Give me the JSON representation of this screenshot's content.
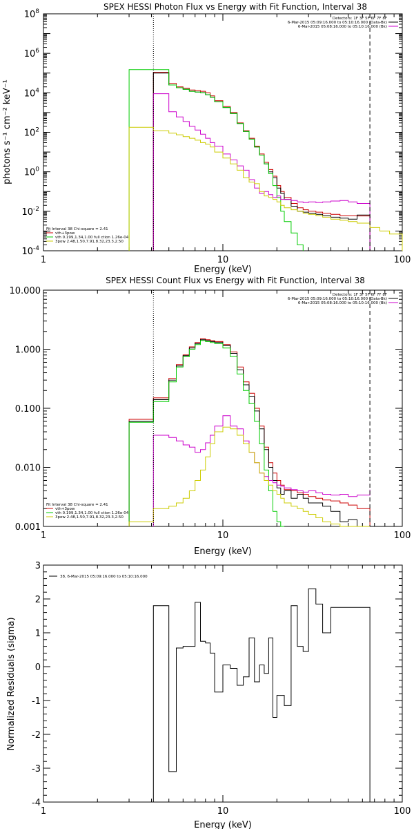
{
  "chart_data": [
    {
      "type": "line",
      "title": "SPEX HESSI Photon Flux vs Energy with Fit Function, Interval 38",
      "xlabel": "Energy (keV)",
      "ylabel": "photons s⁻¹ cm⁻² keV⁻¹",
      "x_scale": "log",
      "y_scale": "log",
      "xlim": [
        1,
        100
      ],
      "ylim": [
        0.0001,
        100000000
      ],
      "x_ticks": [
        {
          "v": 1,
          "label": "1"
        },
        {
          "v": 10,
          "label": "10"
        },
        {
          "v": 100,
          "label": "100"
        }
      ],
      "y_ticks": [
        {
          "v": 0.0001,
          "base": "10",
          "exp": "-4"
        },
        {
          "v": 0.01,
          "base": "10",
          "exp": "-2"
        },
        {
          "v": 1,
          "base": "10",
          "exp": "0"
        },
        {
          "v": 100,
          "base": "10",
          "exp": "2"
        },
        {
          "v": 10000,
          "base": "10",
          "exp": "4"
        },
        {
          "v": 1000000,
          "base": "10",
          "exp": "6"
        },
        {
          "v": 100000000,
          "base": "10",
          "exp": "8"
        }
      ],
      "vlines": [
        {
          "x": 4.1,
          "style": "dotted"
        },
        {
          "x": 66,
          "style": "dashed"
        }
      ],
      "legend_top_right": [
        {
          "text": "Detectors: 1F 3F 5F 6F 7F 8F",
          "color": "#000000"
        },
        {
          "text": "6-Mar-2015 05:09:16.000 to 05:10:16.000 (Data-Bk)",
          "color": "#000000"
        },
        {
          "text": "6-Mar-2015 05:08:16.000 to 05:10:16.000 (Bk)",
          "color": "#cc00cc"
        }
      ],
      "legend_bottom_left": [
        {
          "text": "Fit Interval 38   Chi-square = 2.41",
          "color": "#000000"
        },
        {
          "text": "vth+3pow",
          "color": "#cc0000"
        },
        {
          "text": "vth 0.199,1.34,1.00  full ction 1.26e-04",
          "color": "#00cc00"
        },
        {
          "text": "3pow 2.48,1.50,7.91,8.32,23.3,2.50",
          "color": "#cccc00"
        }
      ],
      "series": [
        {
          "color": "#cc0000",
          "edges": [
            4.1,
            5.0,
            5.5,
            6.0,
            6.5,
            7.0,
            7.5,
            8.0,
            8.5,
            9.0,
            10.0,
            11.0,
            12.0,
            13.0,
            14.0,
            15.0,
            16.0,
            17.0,
            18.0,
            19.0,
            20.0,
            21.0,
            22.0,
            24.0,
            26.0,
            28.0,
            30.0,
            33.0,
            36.0,
            40.0,
            45.0,
            50.0,
            56.0,
            66.0
          ],
          "values": [
            110000,
            30000,
            20000,
            17000,
            14000,
            13000,
            12000,
            10000,
            7000,
            4000,
            2000,
            1000,
            300,
            120,
            50,
            20,
            8,
            3,
            1.3,
            0.6,
            0.2,
            0.1,
            0.05,
            0.025,
            0.015,
            0.012,
            0.01,
            0.009,
            0.008,
            0.007,
            0.006,
            0.006,
            0.0058
          ]
        },
        {
          "color": "#000000",
          "edges": [
            4.1,
            5.0,
            5.5,
            6.0,
            6.5,
            7.0,
            7.5,
            8.0,
            8.5,
            9.0,
            10.0,
            11.0,
            12.0,
            13.0,
            14.0,
            15.0,
            16.0,
            17.0,
            18.0,
            19.0,
            20.0,
            21.0,
            22.0,
            24.0,
            26.0,
            28.0,
            30.0,
            33.0,
            36.0,
            40.0,
            45.0,
            50.0,
            56.0,
            66.0
          ],
          "values": [
            100000,
            25000,
            18000,
            15000,
            12000,
            11000,
            10000,
            8000,
            6000,
            3500,
            1800,
            900,
            280,
            110,
            45,
            18,
            7,
            2.5,
            1.0,
            0.5,
            0.15,
            0.08,
            0.04,
            0.018,
            0.01,
            0.009,
            0.008,
            0.007,
            0.006,
            0.005,
            0.0045,
            0.004,
            0.0065
          ]
        },
        {
          "color": "#00cc00",
          "edges": [
            3.0,
            4.1,
            5.0,
            5.5,
            6.0,
            6.5,
            7.0,
            7.5,
            8.0,
            8.5,
            9.0,
            10.0,
            11.0,
            12.0,
            13.0,
            14.0,
            15.0,
            16.0,
            17.0,
            18.0,
            19.0,
            20.0,
            21.0,
            22.0,
            24.0,
            26.0,
            28.0
          ],
          "values": [
            150000,
            150000,
            25000,
            18000,
            15000,
            12000,
            11000,
            10000,
            8000,
            6000,
            3500,
            1800,
            900,
            280,
            110,
            45,
            18,
            7,
            2.5,
            0.8,
            0.2,
            0.05,
            0.01,
            0.003,
            0.0008,
            0.0002
          ]
        },
        {
          "color": "#cc00cc",
          "edges": [
            4.1,
            5.0,
            5.5,
            6.0,
            6.5,
            7.0,
            7.5,
            8.0,
            8.5,
            9.0,
            10.0,
            11.0,
            12.0,
            13.0,
            14.0,
            15.0,
            16.0,
            17.0,
            18.0,
            19.0,
            20.0,
            21.0,
            22.0,
            24.0,
            26.0,
            28.0,
            30.0,
            33.0,
            36.0,
            40.0,
            45.0,
            50.0,
            56.0,
            66.0
          ],
          "values": [
            9000,
            1100,
            600,
            350,
            200,
            130,
            80,
            50,
            30,
            20,
            8,
            4,
            2,
            1.2,
            0.4,
            0.15,
            0.08,
            0.1,
            0.07,
            0.05,
            0.06,
            0.04,
            0.04,
            0.035,
            0.03,
            0.028,
            0.03,
            0.028,
            0.03,
            0.033,
            0.035,
            0.03,
            0.025
          ]
        },
        {
          "color": "#cccc00",
          "edges": [
            3.0,
            4.1,
            5.0,
            5.5,
            6.0,
            6.5,
            7.0,
            7.5,
            8.0,
            8.5,
            9.0,
            10.0,
            11.0,
            12.0,
            13.0,
            14.0,
            15.0,
            16.0,
            17.0,
            18.0,
            19.0,
            20.0,
            21.0,
            22.0,
            24.0,
            26.0,
            28.0,
            30.0,
            33.0,
            36.0,
            40.0,
            45.0,
            50.0,
            56.0,
            66.0,
            75.0,
            85.0,
            100.0
          ],
          "values": [
            180,
            120,
            90,
            75,
            60,
            50,
            40,
            30,
            25,
            18,
            10,
            5,
            2.5,
            1.2,
            0.5,
            0.3,
            0.25,
            0.1,
            0.06,
            0.05,
            0.04,
            0.03,
            0.02,
            0.015,
            0.012,
            0.01,
            0.008,
            0.007,
            0.006,
            0.005,
            0.004,
            0.0035,
            0.003,
            0.0025,
            0.0015,
            0.001,
            0.0007
          ]
        }
      ]
    },
    {
      "type": "line",
      "title": "SPEX HESSI Count Flux vs Energy with Fit Function, Interval 38",
      "xlabel": "Energy (keV)",
      "ylabel": "",
      "x_scale": "log",
      "y_scale": "log",
      "xlim": [
        1,
        100
      ],
      "ylim": [
        0.001,
        10
      ],
      "x_ticks": [
        {
          "v": 1,
          "label": "1"
        },
        {
          "v": 10,
          "label": "10"
        },
        {
          "v": 100,
          "label": "100"
        }
      ],
      "y_ticks": [
        {
          "v": 0.001,
          "label": "0.001"
        },
        {
          "v": 0.01,
          "label": "0.010"
        },
        {
          "v": 0.1,
          "label": "0.100"
        },
        {
          "v": 1,
          "label": "1.000"
        },
        {
          "v": 10,
          "label": "10.000"
        }
      ],
      "vlines": [
        {
          "x": 4.1,
          "style": "dotted"
        },
        {
          "x": 66,
          "style": "dashed"
        }
      ],
      "legend_top_right": [
        {
          "text": "Detectors: 1F 3F 5F 6F 7F 8F",
          "color": "#000000"
        },
        {
          "text": "6-Mar-2015 05:09:16.000 to 05:10:16.000 (Data-Bk)",
          "color": "#000000"
        },
        {
          "text": "6-Mar-2015 05:08:16.000 to 05:10:16.000 (Bk)",
          "color": "#cc00cc"
        }
      ],
      "legend_bottom_left": [
        {
          "text": "Fit Interval 38   Chi-square = 2.41",
          "color": "#000000"
        },
        {
          "text": "vth+3pow",
          "color": "#cc0000"
        },
        {
          "text": "vth 0.199,1.34,1.00  full ction 1.26e-04",
          "color": "#00cc00"
        },
        {
          "text": "3pow 2.48,1.50,7.91,8.32,23.3,2.50",
          "color": "#cccc00"
        }
      ],
      "series": [
        {
          "color": "#cc0000",
          "edges": [
            3.0,
            4.1,
            5.0,
            5.5,
            6.0,
            6.5,
            7.0,
            7.5,
            8.0,
            8.5,
            9.0,
            10.0,
            11.0,
            12.0,
            13.0,
            14.0,
            15.0,
            16.0,
            17.0,
            18.0,
            19.0,
            20.0,
            21.0,
            22.0,
            24.0,
            26.0,
            28.0,
            30.0,
            33.0,
            36.0,
            40.0,
            45.0,
            50.0,
            56.0,
            66.0
          ],
          "values": [
            0.065,
            0.15,
            0.32,
            0.55,
            0.8,
            1.1,
            1.3,
            1.5,
            1.45,
            1.4,
            1.35,
            1.2,
            0.9,
            0.5,
            0.28,
            0.18,
            0.1,
            0.05,
            0.022,
            0.012,
            0.008,
            0.006,
            0.005,
            0.0042,
            0.004,
            0.0037,
            0.0035,
            0.0032,
            0.003,
            0.0028,
            0.0027,
            0.0025,
            0.0023,
            0.002
          ]
        },
        {
          "color": "#000000",
          "edges": [
            3.0,
            4.1,
            5.0,
            5.5,
            6.0,
            6.5,
            7.0,
            7.5,
            8.0,
            8.5,
            9.0,
            10.0,
            11.0,
            12.0,
            13.0,
            14.0,
            15.0,
            16.0,
            17.0,
            18.0,
            19.0,
            20.0,
            21.0,
            22.0,
            24.0,
            26.0,
            28.0,
            30.0,
            33.0,
            36.0,
            40.0,
            45.0,
            50.0,
            56.0,
            66.0
          ],
          "values": [
            0.06,
            0.14,
            0.3,
            0.52,
            0.78,
            1.05,
            1.25,
            1.45,
            1.4,
            1.35,
            1.3,
            1.15,
            0.85,
            0.45,
            0.25,
            0.16,
            0.09,
            0.045,
            0.02,
            0.01,
            0.006,
            0.0045,
            0.0035,
            0.004,
            0.003,
            0.0035,
            0.003,
            0.0025,
            0.0025,
            0.0022,
            0.0018,
            0.0012,
            0.0013,
            0.001
          ]
        },
        {
          "color": "#00cc00",
          "edges": [
            3.0,
            4.1,
            5.0,
            5.5,
            6.0,
            6.5,
            7.0,
            7.5,
            8.0,
            8.5,
            9.0,
            10.0,
            11.0,
            12.0,
            13.0,
            14.0,
            15.0,
            16.0,
            17.0,
            18.0,
            19.0,
            20.0,
            21.0,
            22.0
          ],
          "values": [
            0.058,
            0.13,
            0.28,
            0.5,
            0.75,
            1.0,
            1.2,
            1.4,
            1.35,
            1.3,
            1.25,
            1.05,
            0.75,
            0.38,
            0.2,
            0.12,
            0.06,
            0.025,
            0.009,
            0.004,
            0.0018,
            0.0012,
            0.0009
          ]
        },
        {
          "color": "#cc00cc",
          "edges": [
            4.1,
            5.0,
            5.5,
            6.0,
            6.5,
            7.0,
            7.5,
            8.0,
            8.5,
            9.0,
            10.0,
            11.0,
            12.0,
            13.0,
            14.0,
            15.0,
            16.0,
            17.0,
            18.0,
            19.0,
            20.0,
            21.0,
            22.0,
            24.0,
            26.0,
            28.0,
            30.0,
            33.0,
            36.0,
            40.0,
            45.0,
            50.0,
            56.0,
            66.0
          ],
          "values": [
            0.035,
            0.032,
            0.028,
            0.024,
            0.022,
            0.018,
            0.02,
            0.026,
            0.035,
            0.05,
            0.075,
            0.05,
            0.045,
            0.028,
            0.018,
            0.012,
            0.008,
            0.007,
            0.006,
            0.0055,
            0.005,
            0.0048,
            0.0045,
            0.0042,
            0.004,
            0.0038,
            0.004,
            0.0037,
            0.0035,
            0.0034,
            0.0035,
            0.0032,
            0.0034,
            0.0042
          ]
        },
        {
          "color": "#cccc00",
          "edges": [
            3.0,
            4.1,
            5.0,
            5.5,
            6.0,
            6.5,
            7.0,
            7.5,
            8.0,
            8.5,
            9.0,
            10.0,
            11.0,
            12.0,
            13.0,
            14.0,
            15.0,
            16.0,
            17.0,
            18.0,
            19.0,
            20.0,
            21.0,
            22.0,
            24.0,
            26.0,
            28.0,
            30.0,
            33.0,
            36.0,
            40.0,
            45.0,
            50.0,
            56.0,
            66.0
          ],
          "values": [
            0.0012,
            0.002,
            0.0022,
            0.0025,
            0.003,
            0.004,
            0.006,
            0.009,
            0.015,
            0.025,
            0.04,
            0.048,
            0.045,
            0.035,
            0.025,
            0.018,
            0.012,
            0.008,
            0.006,
            0.005,
            0.004,
            0.0035,
            0.003,
            0.0025,
            0.0022,
            0.002,
            0.0018,
            0.0016,
            0.0014,
            0.0012,
            0.0011,
            0.001,
            0.001,
            0.001
          ]
        }
      ]
    },
    {
      "type": "line",
      "title": "",
      "xlabel": "Energy (keV)",
      "ylabel": "Normalized Residuals (sigma)",
      "x_scale": "log",
      "y_scale": "linear",
      "xlim": [
        1,
        100
      ],
      "ylim": [
        -4,
        3
      ],
      "x_ticks": [
        {
          "v": 1,
          "label": "1"
        },
        {
          "v": 10,
          "label": "10"
        },
        {
          "v": 100,
          "label": "100"
        }
      ],
      "y_ticks": [
        {
          "v": -4,
          "label": "-4"
        },
        {
          "v": -3,
          "label": "-3"
        },
        {
          "v": -2,
          "label": "-2"
        },
        {
          "v": -1,
          "label": "-1"
        },
        {
          "v": 0,
          "label": "0"
        },
        {
          "v": 1,
          "label": "1"
        },
        {
          "v": 2,
          "label": "2"
        },
        {
          "v": 3,
          "label": "3"
        }
      ],
      "vlines": [],
      "legend_top_right": [],
      "legend_bottom_left": [],
      "legend_top_left": [
        {
          "text": "38,  6-Mar-2015 05:09:16.000 to 05:10:16.000",
          "color": "#000000"
        }
      ],
      "series": [
        {
          "color": "#000000",
          "edges": [
            4.1,
            5.0,
            5.5,
            6.0,
            7.0,
            7.5,
            8.0,
            8.5,
            9.0,
            10.0,
            11.0,
            12.0,
            13.0,
            14.0,
            15.0,
            16.0,
            17.0,
            18.0,
            19.0,
            20.0,
            22.0,
            24.0,
            26.0,
            28.0,
            30.0,
            33.0,
            36.0,
            40.0,
            45.0,
            50.0,
            56.0,
            61.0,
            66.0
          ],
          "values": [
            1.8,
            -3.1,
            0.55,
            0.6,
            1.9,
            0.75,
            0.7,
            0.4,
            -0.75,
            0.05,
            -0.05,
            -0.55,
            -0.3,
            0.85,
            -0.45,
            0.05,
            -0.2,
            0.85,
            -1.5,
            -0.85,
            -1.15,
            1.8,
            0.6,
            0.45,
            2.3,
            1.85,
            1.0,
            1.75,
            1.75,
            1.75,
            1.75,
            1.75
          ],
          "close_to_bottom": true
        }
      ]
    }
  ]
}
